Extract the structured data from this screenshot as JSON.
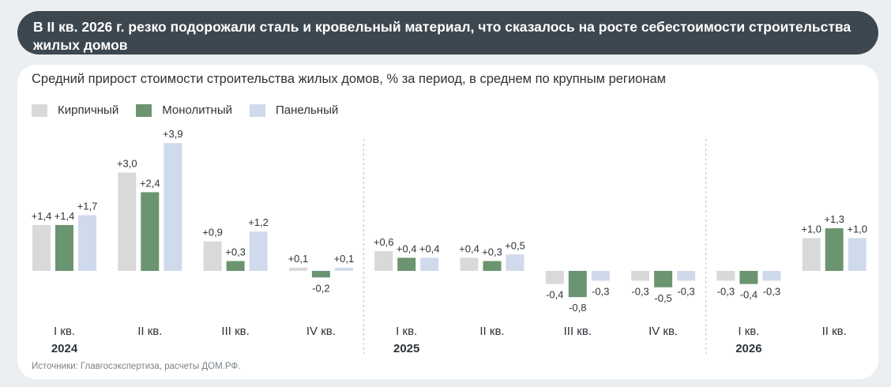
{
  "header": {
    "title": "В II кв. 2026 г. резко подорожали сталь и кровельный материал, что сказалось на росте себестоимости строительства жилых домов"
  },
  "chart_data": {
    "type": "bar",
    "title": "Средний прирост стоимости строительства жилых домов, % за период, в среднем по крупным регионам",
    "xlabel": "",
    "ylabel": "",
    "categories": [
      "I кв.",
      "II кв.",
      "III кв.",
      "IV кв.",
      "I кв.",
      "II кв.",
      "III кв.",
      "IV кв.",
      "I кв.",
      "II кв."
    ],
    "years": [
      {
        "label": "2024",
        "start_index": 0
      },
      {
        "label": "2025",
        "start_index": 4
      },
      {
        "label": "2026",
        "start_index": 8
      }
    ],
    "series": [
      {
        "name": "Кирпичный",
        "color": "#d9d9d9",
        "values": [
          1.4,
          3.0,
          0.9,
          0.1,
          0.6,
          0.4,
          -0.4,
          -0.3,
          -0.3,
          1.0
        ]
      },
      {
        "name": "Монолитный",
        "color": "#6b9470",
        "values": [
          1.4,
          2.4,
          0.3,
          -0.2,
          0.4,
          0.3,
          -0.8,
          -0.5,
          -0.4,
          1.3
        ]
      },
      {
        "name": "Панельный",
        "color": "#cfdaec",
        "values": [
          1.7,
          3.9,
          1.2,
          0.1,
          0.4,
          0.5,
          -0.3,
          -0.3,
          -0.3,
          1.0
        ]
      }
    ],
    "data_labels": [
      [
        "+1,4",
        "+3,0",
        "+0,9",
        "+0,1",
        "+0,6",
        "+0,4",
        "-0,4",
        "-0,3",
        "-0,3",
        "+1,0"
      ],
      [
        "+1,4",
        "+2,4",
        "+0,3",
        "-0,2",
        "+0,4",
        "+0,3",
        "-0,8",
        "-0,5",
        "-0,4",
        "+1,3"
      ],
      [
        "+1,7",
        "+3,9",
        "+1,2",
        "+0,1",
        "+0,4",
        "+0,5",
        "-0,3",
        "-0,3",
        "-0,3",
        "+1,0"
      ]
    ],
    "grid": false,
    "legend_position": "top-left"
  },
  "source": "Источники: Главгосэкспертиза, расчеты ДОМ.РФ."
}
